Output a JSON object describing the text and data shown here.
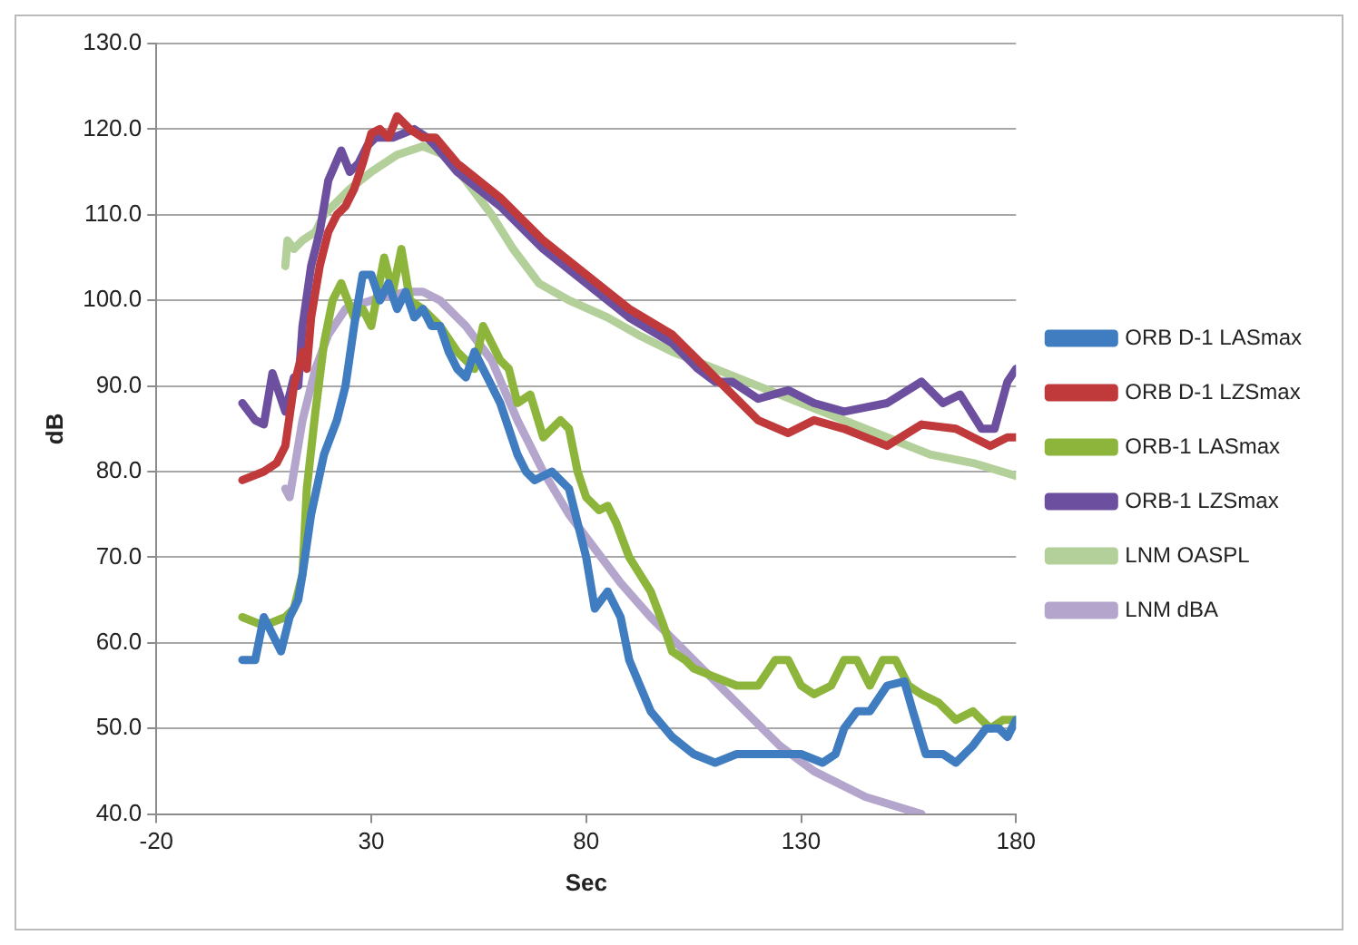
{
  "chart_data": {
    "type": "line",
    "xlabel": "Sec",
    "ylabel": "dB",
    "xlim": [
      -20,
      180
    ],
    "xticks": [
      -20,
      30,
      80,
      130,
      180
    ],
    "ylim": [
      40,
      130
    ],
    "yticks": [
      {
        "value": 40,
        "label": "40.0"
      },
      {
        "value": 50,
        "label": "50.0"
      },
      {
        "value": 60,
        "label": "60.0"
      },
      {
        "value": 70,
        "label": "70.0"
      },
      {
        "value": 80,
        "label": "80.0"
      },
      {
        "value": 90,
        "label": "90.0"
      },
      {
        "value": 100,
        "label": "100.0"
      },
      {
        "value": 110,
        "label": "110.0"
      },
      {
        "value": 120,
        "label": "120.0"
      },
      {
        "value": 130,
        "label": "130.0"
      }
    ],
    "grid": "y",
    "legend": "right",
    "marker": "none",
    "line_style": "solid",
    "series": [
      {
        "name": "ORB D-1 LASmax",
        "color": "#3f7cc0",
        "x": [
          0,
          3,
          5,
          9,
          11,
          13,
          14,
          16,
          19,
          22,
          24,
          26,
          28,
          30,
          32,
          34,
          36,
          38,
          40,
          42,
          44,
          46,
          48,
          50,
          52,
          54,
          56,
          58,
          60,
          62,
          64,
          66,
          68,
          72,
          76,
          80,
          82,
          85,
          88,
          90,
          95,
          100,
          105,
          110,
          115,
          120,
          125,
          130,
          135,
          138,
          140,
          143,
          146,
          150,
          154,
          156,
          159,
          163,
          166,
          170,
          173,
          176,
          178,
          180
        ],
        "values": [
          58,
          58,
          63,
          59,
          63,
          65,
          68,
          75,
          82,
          86,
          90,
          97,
          103,
          103,
          100,
          102,
          99,
          101,
          98,
          99,
          97,
          97,
          94,
          92,
          91,
          94,
          92,
          90,
          88,
          85,
          82,
          80,
          79,
          80,
          78,
          70,
          64,
          66,
          63,
          58,
          52,
          49,
          47,
          46,
          47,
          47,
          47,
          47,
          46,
          47,
          50,
          52,
          52,
          55,
          55.5,
          52,
          47,
          47,
          46,
          48,
          50,
          50,
          49,
          51
        ]
      },
      {
        "name": "ORB D-1 LZSmax",
        "color": "#c0393b",
        "x": [
          0,
          5,
          8,
          10,
          12,
          14,
          15,
          16,
          18,
          20,
          22,
          24,
          26,
          28,
          30,
          32,
          34,
          36,
          39,
          42,
          45,
          50,
          60,
          70,
          80,
          90,
          100,
          106,
          110,
          114,
          120,
          127,
          133,
          140,
          150,
          158,
          166,
          174,
          178,
          180
        ],
        "values": [
          79,
          80,
          81,
          83,
          90,
          94,
          92,
          98,
          104,
          108,
          110,
          111,
          113,
          116,
          119.5,
          120,
          119,
          121.5,
          120,
          119,
          119,
          116,
          112,
          107,
          103,
          99,
          96,
          93,
          91,
          89,
          86,
          84.5,
          86,
          85,
          83,
          85.5,
          85,
          83,
          84,
          84
        ]
      },
      {
        "name": "ORB-1 LASmax",
        "color": "#8db53c",
        "x": [
          0,
          5,
          10,
          12,
          14,
          15,
          17,
          19,
          21,
          23,
          26,
          28,
          30,
          33,
          35,
          37,
          39,
          42,
          46,
          50,
          54,
          56,
          60,
          62,
          64,
          67,
          70,
          74,
          76,
          78,
          80,
          83,
          85,
          87,
          90,
          95,
          98,
          100,
          103,
          105,
          110,
          115,
          120,
          124,
          127,
          130,
          133,
          137,
          140,
          143,
          146,
          149,
          152,
          155,
          158,
          162,
          166,
          170,
          174,
          177,
          180
        ],
        "values": [
          63,
          62,
          63,
          64,
          68,
          78,
          87,
          95,
          100,
          102,
          98,
          99,
          97,
          105,
          101,
          106,
          100,
          99,
          97,
          94,
          92,
          97,
          93,
          92,
          88,
          89,
          84,
          86,
          85,
          80,
          77,
          75.5,
          76,
          74,
          70,
          66,
          62,
          59,
          58,
          57,
          56,
          55,
          55,
          58,
          58,
          55,
          54,
          55,
          58,
          58,
          55,
          58,
          58,
          55,
          54,
          53,
          51,
          52,
          50,
          51,
          51
        ]
      },
      {
        "name": "ORB-1 LZSmax",
        "color": "#6c4f9e",
        "x": [
          0,
          3,
          5,
          7,
          10,
          12,
          13,
          14,
          16,
          18,
          20,
          23,
          25,
          27,
          29,
          31,
          35,
          40,
          43,
          45,
          50,
          60,
          70,
          80,
          90,
          100,
          106,
          110,
          114,
          120,
          127,
          133,
          140,
          150,
          158,
          163,
          167,
          172,
          175,
          178,
          180
        ],
        "values": [
          88,
          86,
          85.5,
          91.5,
          87,
          91,
          90,
          97,
          104,
          108,
          114,
          117.5,
          115,
          116,
          118,
          119,
          119,
          120,
          119,
          118,
          115,
          111,
          106,
          102,
          98,
          95,
          92,
          90.5,
          90.5,
          88.5,
          89.5,
          88,
          87,
          88,
          90.5,
          88,
          89,
          85,
          85,
          90.5,
          92
        ]
      },
      {
        "name": "LNM OASPL",
        "color": "#b3d09a",
        "x": [
          10,
          10.5,
          12,
          14,
          17,
          19,
          25,
          30,
          36,
          42,
          47,
          52,
          58,
          63,
          69,
          76,
          85,
          92,
          100,
          110,
          120,
          130,
          140,
          150,
          160,
          170,
          180
        ],
        "values": [
          104,
          107,
          106,
          107,
          108,
          110,
          113,
          115,
          117,
          118,
          117,
          114,
          110,
          106,
          102,
          100,
          98,
          96,
          94,
          92,
          90,
          88,
          86,
          84,
          82,
          81,
          79.5
        ]
      },
      {
        "name": "LNM dBA",
        "color": "#b3a5cc",
        "x": [
          10,
          11,
          12,
          14,
          17,
          20,
          24,
          30,
          38,
          42,
          46,
          52,
          58,
          64,
          70,
          76,
          82,
          88,
          95,
          101,
          107,
          115,
          125,
          133,
          145,
          158
        ],
        "values": [
          78,
          77,
          80,
          86,
          92,
          96,
          99,
          100,
          101,
          101,
          100,
          97,
          93,
          86,
          80,
          75,
          71,
          67,
          63,
          60,
          57,
          53,
          48,
          45,
          42,
          40
        ]
      }
    ]
  }
}
